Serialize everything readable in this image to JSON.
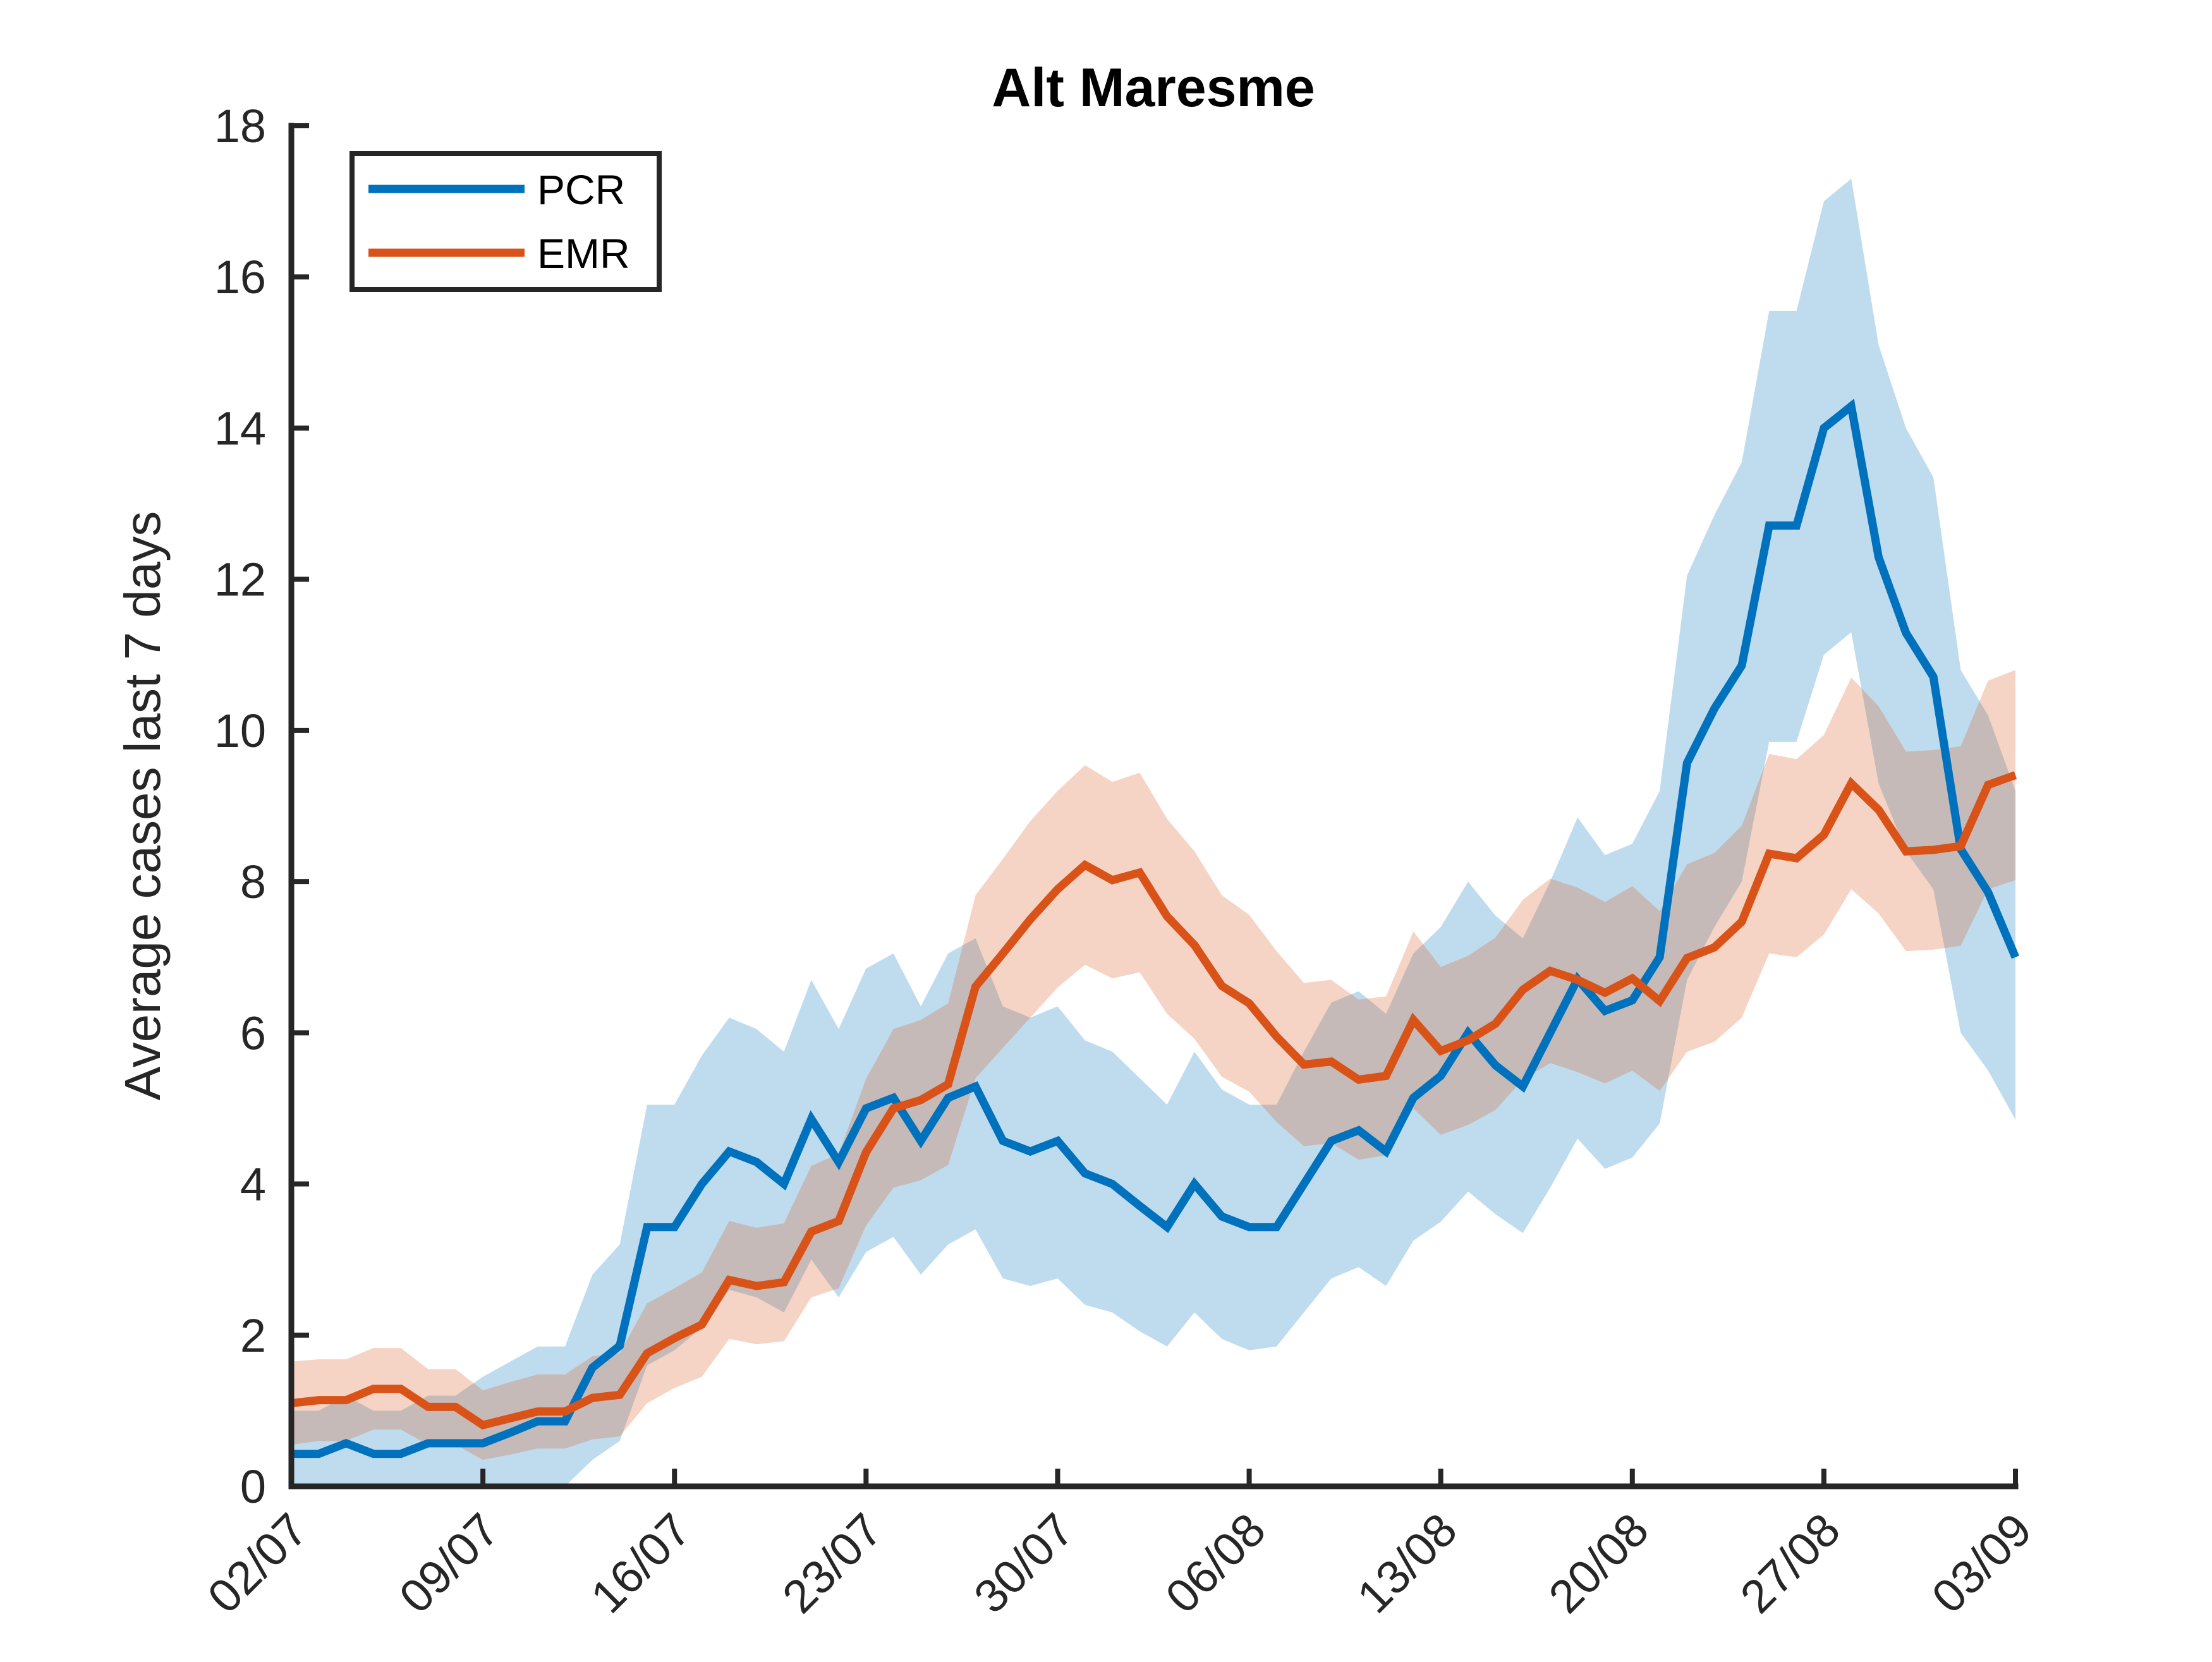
{
  "chart_data": {
    "type": "line",
    "title": "Alt Maresme",
    "xlabel": "",
    "ylabel": "Average cases last 7 days",
    "x_tick_labels": [
      "02/07",
      "09/07",
      "16/07",
      "23/07",
      "30/07",
      "06/08",
      "13/08",
      "20/08",
      "27/08",
      "03/09"
    ],
    "xlim": [
      0,
      63
    ],
    "ylim": [
      0,
      18
    ],
    "y_ticks": [
      0,
      2,
      4,
      6,
      8,
      10,
      12,
      14,
      16,
      18
    ],
    "grid": false,
    "legend_position": "top-left",
    "series": [
      {
        "name": "PCR",
        "color": "#0072BD",
        "band_color": "#0072BD",
        "values": [
          0.43,
          0.43,
          0.57,
          0.43,
          0.43,
          0.57,
          0.57,
          0.57,
          0.71,
          0.86,
          0.86,
          1.57,
          1.86,
          3.43,
          3.43,
          4.0,
          4.43,
          4.29,
          4.0,
          4.86,
          4.29,
          5.0,
          5.14,
          4.57,
          5.14,
          5.29,
          4.57,
          4.43,
          4.57,
          4.14,
          4.0,
          3.71,
          3.43,
          4.0,
          3.57,
          3.43,
          3.43,
          4.0,
          4.57,
          4.71,
          4.43,
          5.14,
          5.43,
          6.0,
          5.57,
          5.29,
          6.0,
          6.71,
          6.29,
          6.43,
          7.0,
          9.57,
          10.29,
          10.86,
          12.71,
          12.71,
          14.0,
          14.29,
          12.29,
          11.29,
          10.71,
          8.43,
          7.86,
          7.0
        ],
        "lower": [
          0.0,
          0.0,
          0.0,
          0.0,
          0.0,
          0.0,
          0.0,
          0.0,
          0.0,
          0.0,
          0.0,
          0.35,
          0.6,
          1.6,
          1.8,
          2.1,
          2.6,
          2.5,
          2.3,
          3.0,
          2.5,
          3.1,
          3.3,
          2.8,
          3.2,
          3.4,
          2.75,
          2.65,
          2.75,
          2.4,
          2.3,
          2.05,
          1.85,
          2.3,
          1.95,
          1.8,
          1.85,
          2.3,
          2.75,
          2.9,
          2.65,
          3.25,
          3.5,
          3.9,
          3.6,
          3.35,
          3.95,
          4.6,
          4.2,
          4.35,
          4.8,
          6.7,
          7.4,
          8.0,
          9.85,
          9.85,
          11.0,
          11.3,
          9.3,
          8.4,
          7.9,
          6.0,
          5.5,
          4.85
        ],
        "upper": [
          1.0,
          1.0,
          1.2,
          1.0,
          1.0,
          1.2,
          1.2,
          1.45,
          1.65,
          1.85,
          1.85,
          2.8,
          3.2,
          5.05,
          5.05,
          5.7,
          6.2,
          6.05,
          5.75,
          6.7,
          6.05,
          6.85,
          7.05,
          6.35,
          7.05,
          7.25,
          6.35,
          6.2,
          6.35,
          5.9,
          5.75,
          5.4,
          5.05,
          5.75,
          5.25,
          5.05,
          5.05,
          5.75,
          6.4,
          6.55,
          6.25,
          7.05,
          7.4,
          8.0,
          7.55,
          7.25,
          8.0,
          8.85,
          8.35,
          8.5,
          9.2,
          12.05,
          12.85,
          13.55,
          15.55,
          15.55,
          17.0,
          17.3,
          15.1,
          14.0,
          13.35,
          10.8,
          10.2,
          9.2
        ]
      },
      {
        "name": "EMR",
        "color": "#D95319",
        "band_color": "#D95319",
        "values": [
          1.1,
          1.14,
          1.14,
          1.29,
          1.29,
          1.05,
          1.05,
          0.81,
          0.9,
          0.99,
          0.99,
          1.17,
          1.21,
          1.76,
          1.96,
          2.14,
          2.73,
          2.65,
          2.7,
          3.37,
          3.51,
          4.42,
          5.0,
          5.11,
          5.32,
          6.61,
          7.05,
          7.5,
          7.9,
          8.22,
          8.02,
          8.12,
          7.54,
          7.16,
          6.62,
          6.39,
          5.95,
          5.58,
          5.62,
          5.38,
          5.43,
          6.17,
          5.76,
          5.9,
          6.12,
          6.57,
          6.82,
          6.7,
          6.53,
          6.72,
          6.42,
          6.99,
          7.13,
          7.47,
          8.37,
          8.31,
          8.62,
          9.3,
          8.95,
          8.4,
          8.42,
          8.47,
          9.28,
          9.41
        ],
        "lower": [
          0.55,
          0.6,
          0.6,
          0.75,
          0.75,
          0.55,
          0.55,
          0.35,
          0.42,
          0.5,
          0.5,
          0.62,
          0.66,
          1.1,
          1.3,
          1.45,
          1.95,
          1.88,
          1.92,
          2.5,
          2.62,
          3.45,
          3.95,
          4.05,
          4.25,
          5.4,
          5.8,
          6.2,
          6.6,
          6.9,
          6.72,
          6.8,
          6.25,
          5.92,
          5.42,
          5.22,
          4.82,
          4.5,
          4.54,
          4.32,
          4.38,
          5.0,
          4.65,
          4.78,
          4.98,
          5.38,
          5.6,
          5.48,
          5.33,
          5.5,
          5.23,
          5.75,
          5.88,
          6.2,
          7.05,
          7.0,
          7.3,
          7.9,
          7.58,
          7.08,
          7.1,
          7.15,
          7.9,
          8.02
        ],
        "upper": [
          1.65,
          1.68,
          1.68,
          1.83,
          1.83,
          1.55,
          1.55,
          1.27,
          1.38,
          1.48,
          1.48,
          1.72,
          1.76,
          2.42,
          2.62,
          2.83,
          3.51,
          3.42,
          3.48,
          4.24,
          4.4,
          5.39,
          6.05,
          6.17,
          6.39,
          7.82,
          8.3,
          8.8,
          9.2,
          9.54,
          9.32,
          9.44,
          8.83,
          8.4,
          7.82,
          7.56,
          7.08,
          6.66,
          6.7,
          6.44,
          6.48,
          7.34,
          6.87,
          7.02,
          7.26,
          7.76,
          8.04,
          7.92,
          7.73,
          7.94,
          7.61,
          8.23,
          8.38,
          8.74,
          9.69,
          9.62,
          9.94,
          10.7,
          10.32,
          9.72,
          9.74,
          9.79,
          10.66,
          10.8
        ]
      }
    ]
  }
}
